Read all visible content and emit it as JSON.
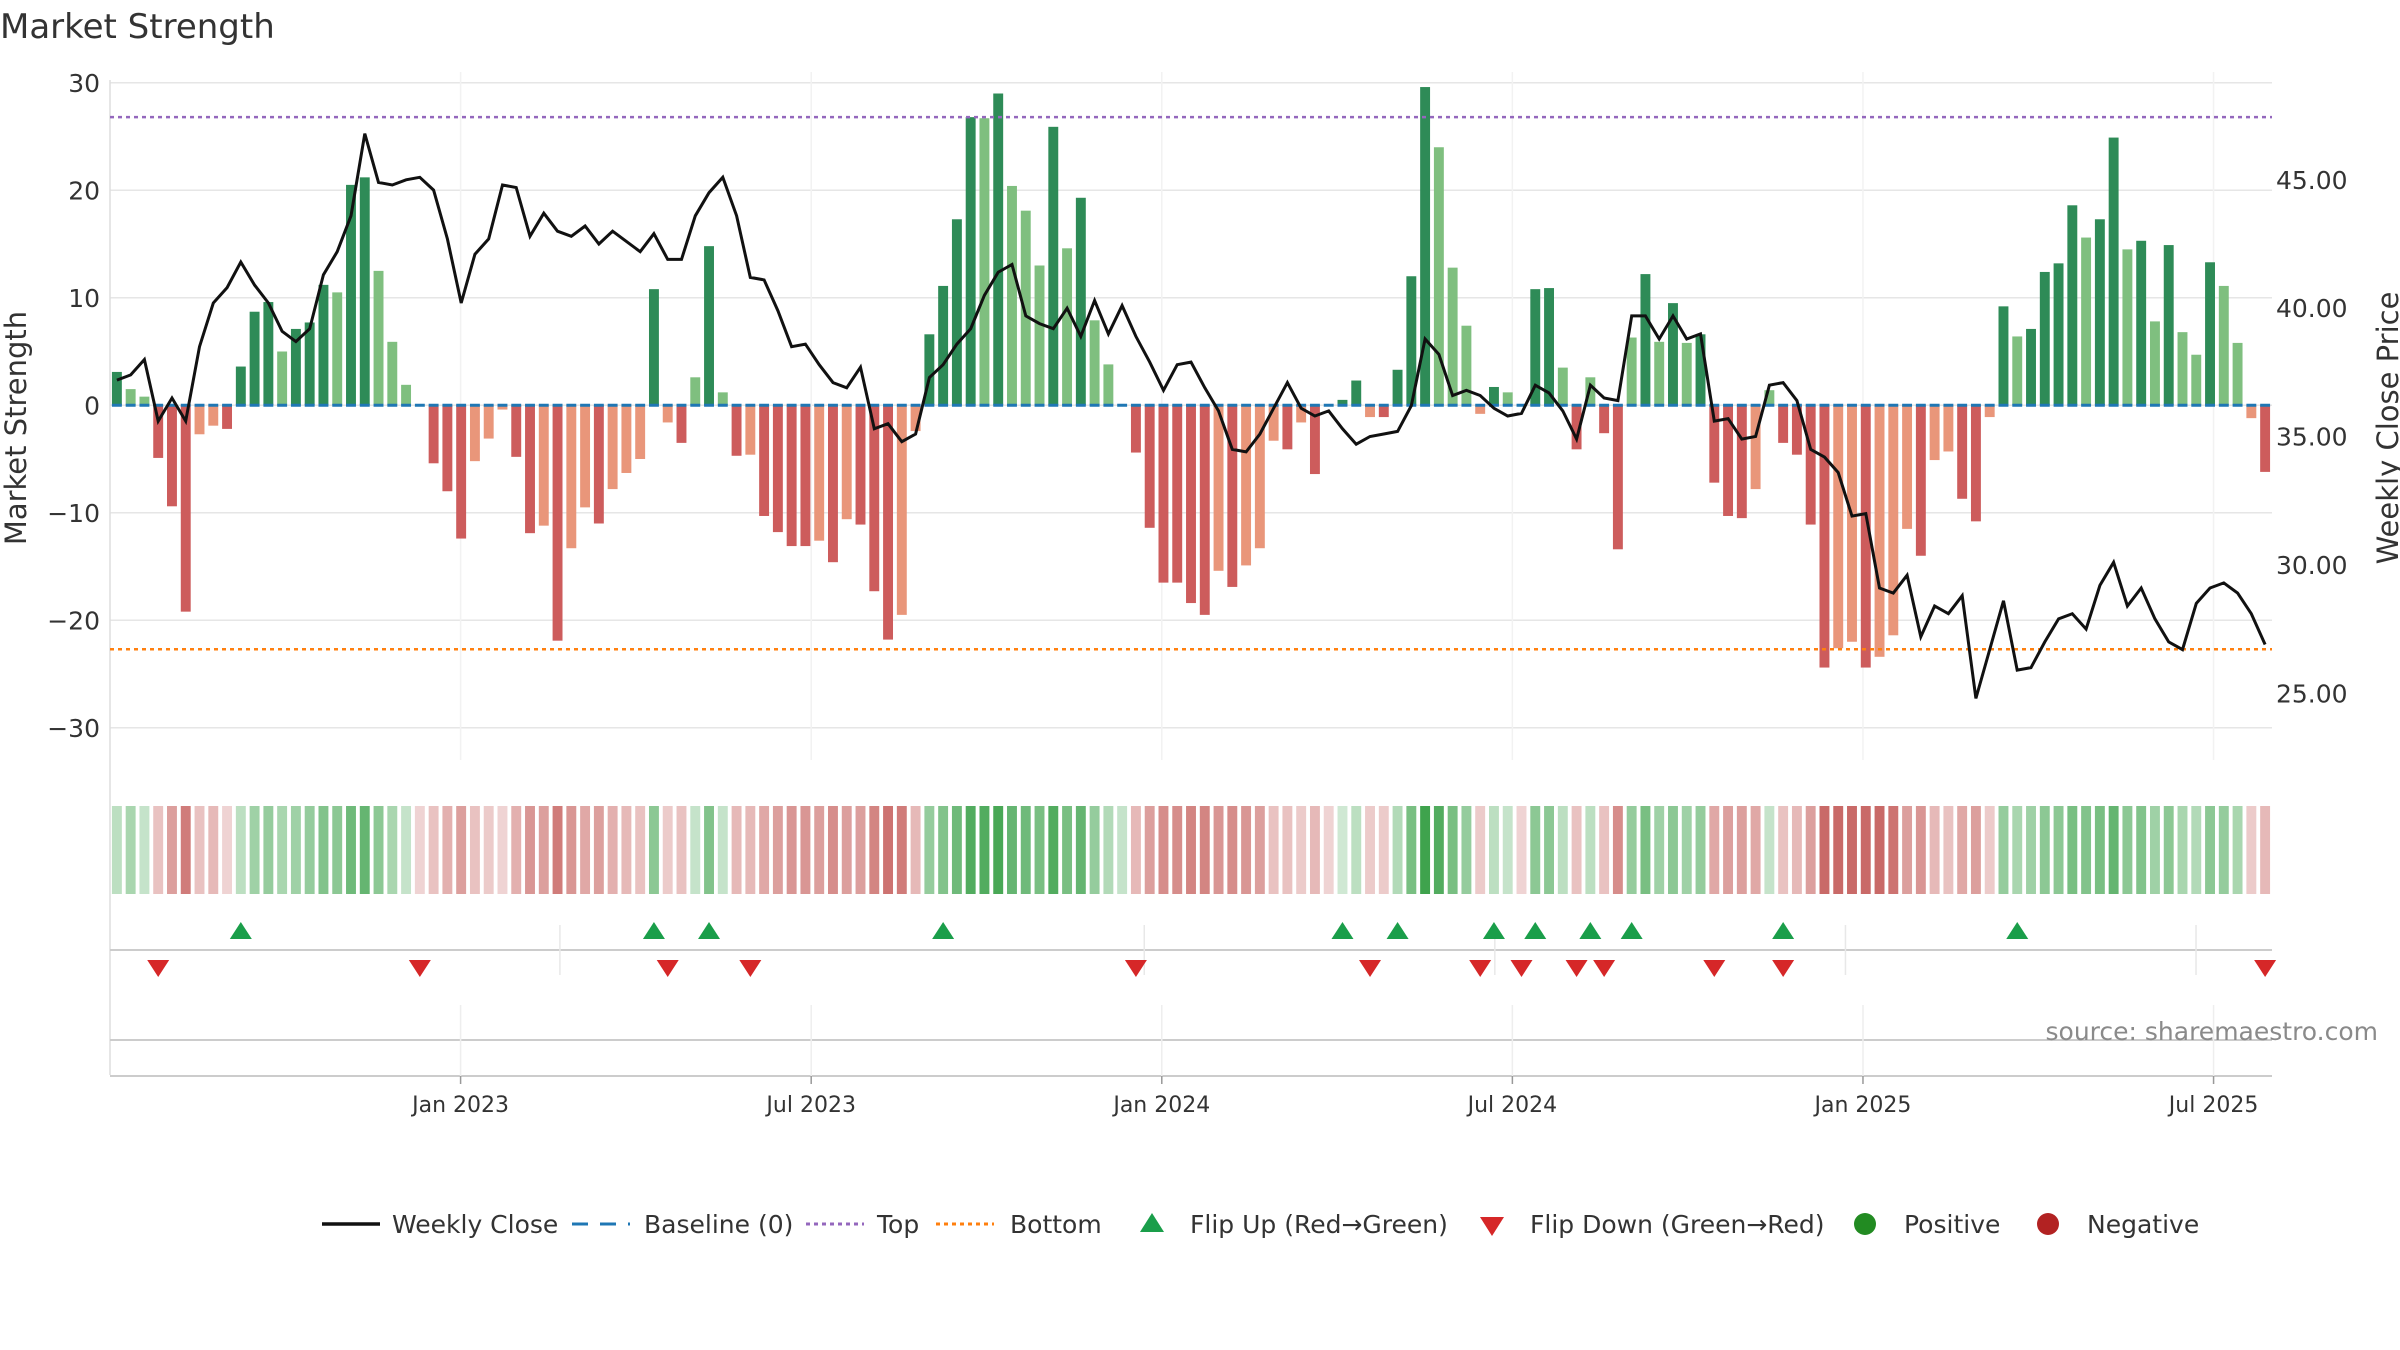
{
  "chart_data": {
    "type": "bar",
    "title": "Market Strength",
    "ylabel": "Market Strength",
    "y2label": "Weekly Close Price",
    "source": "source: sharemaestro.com",
    "ylim": [
      -33,
      31
    ],
    "y2lim": [
      22.4,
      49.2
    ],
    "yticks": [
      30,
      20,
      10,
      0,
      -10,
      -20,
      -30
    ],
    "yticklabels": [
      "30",
      "20",
      "10",
      "0",
      "−10",
      "−20",
      "−30"
    ],
    "y2ticks": [
      45,
      40,
      35,
      30,
      25
    ],
    "y2ticklabels": [
      "45.00",
      "40.00",
      "35.00",
      "30.00",
      "25.00"
    ],
    "x_months_range": [
      0,
      37
    ],
    "xticks": [
      {
        "label": "Jan 2023",
        "m": 6
      },
      {
        "label": "Jul 2023",
        "m": 12
      },
      {
        "label": "Jan 2024",
        "m": 18
      },
      {
        "label": "Jul 2024",
        "m": 24
      },
      {
        "label": "Jan 2025",
        "m": 30
      },
      {
        "label": "Jul 2025",
        "m": 36
      }
    ],
    "top_level": 26.8,
    "bottom_level": -22.7,
    "colors": {
      "strong_up": "#2e8b57",
      "weak_up": "#7fbf7f",
      "strong_down": "#cd5c5c",
      "weak_down": "#e9967a",
      "close": "#111111",
      "baseline": "#1f77b4",
      "top": "#9467bd",
      "bottom": "#ff7f0e",
      "flip_up": "#1a9e4a",
      "flip_down": "#d62728",
      "positive": "#228b22",
      "negative": "#b22222",
      "grid": "#e6e6e6"
    },
    "strength": [
      3.1,
      1.5,
      0.8,
      -4.9,
      -9.4,
      -19.2,
      -2.7,
      -1.9,
      -2.2,
      3.6,
      8.7,
      9.6,
      5.0,
      7.1,
      7.7,
      11.2,
      10.5,
      20.5,
      21.2,
      12.5,
      5.9,
      1.9,
      0,
      -5.4,
      -8.0,
      -12.4,
      -5.2,
      -3.1,
      -0.4,
      -4.8,
      -11.9,
      -11.2,
      -21.9,
      -13.3,
      -9.5,
      -11.0,
      -7.8,
      -6.3,
      -5.0,
      10.8,
      -1.6,
      -3.5,
      2.6,
      14.8,
      1.2,
      -4.7,
      -4.6,
      -10.3,
      -11.8,
      -13.1,
      -13.1,
      -12.6,
      -14.6,
      -10.6,
      -11.1,
      -17.3,
      -21.8,
      -19.5,
      -2.4,
      6.6,
      11.1,
      17.3,
      26.8,
      26.7,
      29.0,
      20.4,
      18.1,
      13.0,
      25.9,
      14.6,
      19.3,
      7.9,
      3.8,
      0,
      -4.4,
      -11.4,
      -16.5,
      -16.5,
      -18.4,
      -19.5,
      -15.4,
      -16.9,
      -14.9,
      -13.3,
      -3.3,
      -4.1,
      -1.6,
      -6.4,
      0,
      0.5,
      2.3,
      -1.1,
      -1.1,
      3.3,
      12.0,
      29.6,
      24.0,
      12.8,
      7.4,
      -0.8,
      1.7,
      1.2,
      0,
      10.8,
      10.9,
      3.5,
      -4.1,
      2.6,
      -2.6,
      -13.4,
      6.3,
      12.2,
      5.9,
      9.5,
      5.8,
      6.6,
      -7.2,
      -10.3,
      -10.5,
      -7.8,
      1.4,
      -3.5,
      -4.6,
      -11.1,
      -24.4,
      -22.6,
      -22.0,
      -24.4,
      -23.4,
      -21.4,
      -11.5,
      -14.0,
      -5.1,
      -4.3,
      -8.7,
      -10.8,
      -1.1,
      9.2,
      6.4,
      7.1,
      12.4,
      13.2,
      18.6,
      15.6,
      17.3,
      24.9,
      14.5,
      15.3,
      7.8,
      14.9,
      6.8,
      4.7,
      13.3,
      11.1,
      5.8,
      -1.2,
      -6.2
    ],
    "close": [
      37.2,
      37.4,
      38.0,
      35.6,
      36.5,
      35.6,
      38.5,
      40.2,
      40.8,
      41.8,
      40.9,
      40.2,
      39.1,
      38.7,
      39.2,
      41.3,
      42.2,
      43.6,
      46.8,
      44.9,
      44.8,
      45.0,
      45.1,
      44.6,
      42.7,
      40.2,
      42.1,
      42.7,
      44.8,
      44.7,
      42.8,
      43.7,
      43.0,
      42.8,
      43.2,
      42.5,
      43.0,
      42.6,
      42.2,
      42.9,
      41.9,
      41.9,
      43.6,
      44.5,
      45.1,
      43.6,
      41.2,
      41.1,
      39.9,
      38.5,
      38.6,
      37.8,
      37.1,
      36.9,
      37.7,
      35.3,
      35.5,
      34.8,
      35.1,
      37.3,
      37.8,
      38.6,
      39.2,
      40.5,
      41.4,
      41.7,
      39.7,
      39.4,
      39.2,
      40.0,
      38.9,
      40.3,
      39.0,
      40.1,
      38.9,
      37.9,
      36.8,
      37.8,
      37.9,
      36.9,
      36.0,
      34.5,
      34.4,
      35.1,
      36.1,
      37.1,
      36.1,
      35.8,
      36.0,
      35.3,
      34.7,
      35.0,
      35.1,
      35.2,
      36.2,
      38.8,
      38.2,
      36.6,
      36.8,
      36.6,
      36.1,
      35.8,
      35.9,
      37.0,
      36.7,
      36.0,
      34.9,
      37.0,
      36.5,
      36.4,
      39.7,
      39.7,
      38.8,
      39.7,
      38.8,
      39.0,
      35.6,
      35.7,
      34.9,
      35.0,
      37.0,
      37.1,
      36.4,
      34.5,
      34.2,
      33.6,
      31.9,
      32.0,
      29.1,
      28.9,
      29.6,
      27.2,
      28.4,
      28.1,
      28.8,
      24.8,
      26.7,
      28.6,
      25.9,
      26.0,
      27.0,
      27.9,
      28.1,
      27.5,
      29.2,
      30.1,
      28.4,
      29.1,
      27.9,
      27.0,
      26.7,
      28.5,
      29.1,
      29.3,
      28.9,
      28.1,
      26.9
    ],
    "market_bar_intensity": [
      0.35,
      0.45,
      0.3,
      -0.35,
      -0.55,
      -0.75,
      -0.35,
      -0.4,
      -0.25,
      0.35,
      0.5,
      0.55,
      0.45,
      0.5,
      0.55,
      0.65,
      0.6,
      0.75,
      0.8,
      0.6,
      0.45,
      0.3,
      -0.25,
      -0.35,
      -0.45,
      -0.55,
      -0.35,
      -0.3,
      -0.25,
      -0.45,
      -0.6,
      -0.55,
      -0.75,
      -0.6,
      -0.5,
      -0.55,
      -0.45,
      -0.4,
      -0.35,
      0.6,
      -0.3,
      -0.35,
      0.3,
      0.65,
      0.3,
      -0.4,
      -0.4,
      -0.5,
      -0.55,
      -0.6,
      -0.6,
      -0.55,
      -0.65,
      -0.55,
      -0.55,
      -0.7,
      -0.8,
      -0.75,
      -0.4,
      0.55,
      0.65,
      0.75,
      0.9,
      0.9,
      0.95,
      0.8,
      0.75,
      0.7,
      0.9,
      0.7,
      0.8,
      0.55,
      0.4,
      0.3,
      -0.4,
      -0.55,
      -0.65,
      -0.65,
      -0.7,
      -0.7,
      -0.6,
      -0.65,
      -0.6,
      -0.55,
      -0.35,
      -0.35,
      -0.3,
      -0.4,
      -0.25,
      0.25,
      0.35,
      -0.3,
      -0.3,
      0.4,
      0.7,
      1.0,
      0.9,
      0.7,
      0.55,
      -0.3,
      0.35,
      0.3,
      -0.25,
      0.6,
      0.6,
      0.35,
      -0.35,
      0.35,
      -0.35,
      -0.65,
      0.55,
      0.7,
      0.5,
      0.6,
      0.5,
      0.55,
      -0.5,
      -0.55,
      -0.55,
      -0.5,
      0.3,
      -0.35,
      -0.4,
      -0.55,
      -0.85,
      -0.85,
      -0.85,
      -0.85,
      -0.85,
      -0.8,
      -0.55,
      -0.6,
      -0.4,
      -0.35,
      -0.5,
      -0.55,
      -0.3,
      0.55,
      0.45,
      0.5,
      0.6,
      0.6,
      0.7,
      0.65,
      0.7,
      0.8,
      0.6,
      0.65,
      0.5,
      0.6,
      0.45,
      0.4,
      0.6,
      0.55,
      0.45,
      -0.3,
      -0.4
    ],
    "flip_up_weeks": [
      9,
      39,
      43,
      60,
      89,
      93,
      100,
      103,
      107,
      110,
      121,
      138
    ],
    "flip_down_weeks": [
      3,
      22,
      40,
      46,
      74,
      91,
      99,
      102,
      106,
      108,
      116,
      121,
      156
    ],
    "flip_row_ticks_m": [
      7.7,
      17.7,
      23.7,
      29.7,
      35.7
    ],
    "legend": [
      {
        "label": "Weekly Close",
        "kind": "line"
      },
      {
        "label": "Baseline (0)",
        "kind": "dash"
      },
      {
        "label": "Top",
        "kind": "dot-purple"
      },
      {
        "label": "Bottom",
        "kind": "dot-orange"
      },
      {
        "label": "Flip Up (Red→Green)",
        "kind": "tri-up"
      },
      {
        "label": "Flip Down (Green→Red)",
        "kind": "tri-down"
      },
      {
        "label": "Positive",
        "kind": "circle-pos"
      },
      {
        "label": "Negative",
        "kind": "circle-neg"
      }
    ]
  }
}
